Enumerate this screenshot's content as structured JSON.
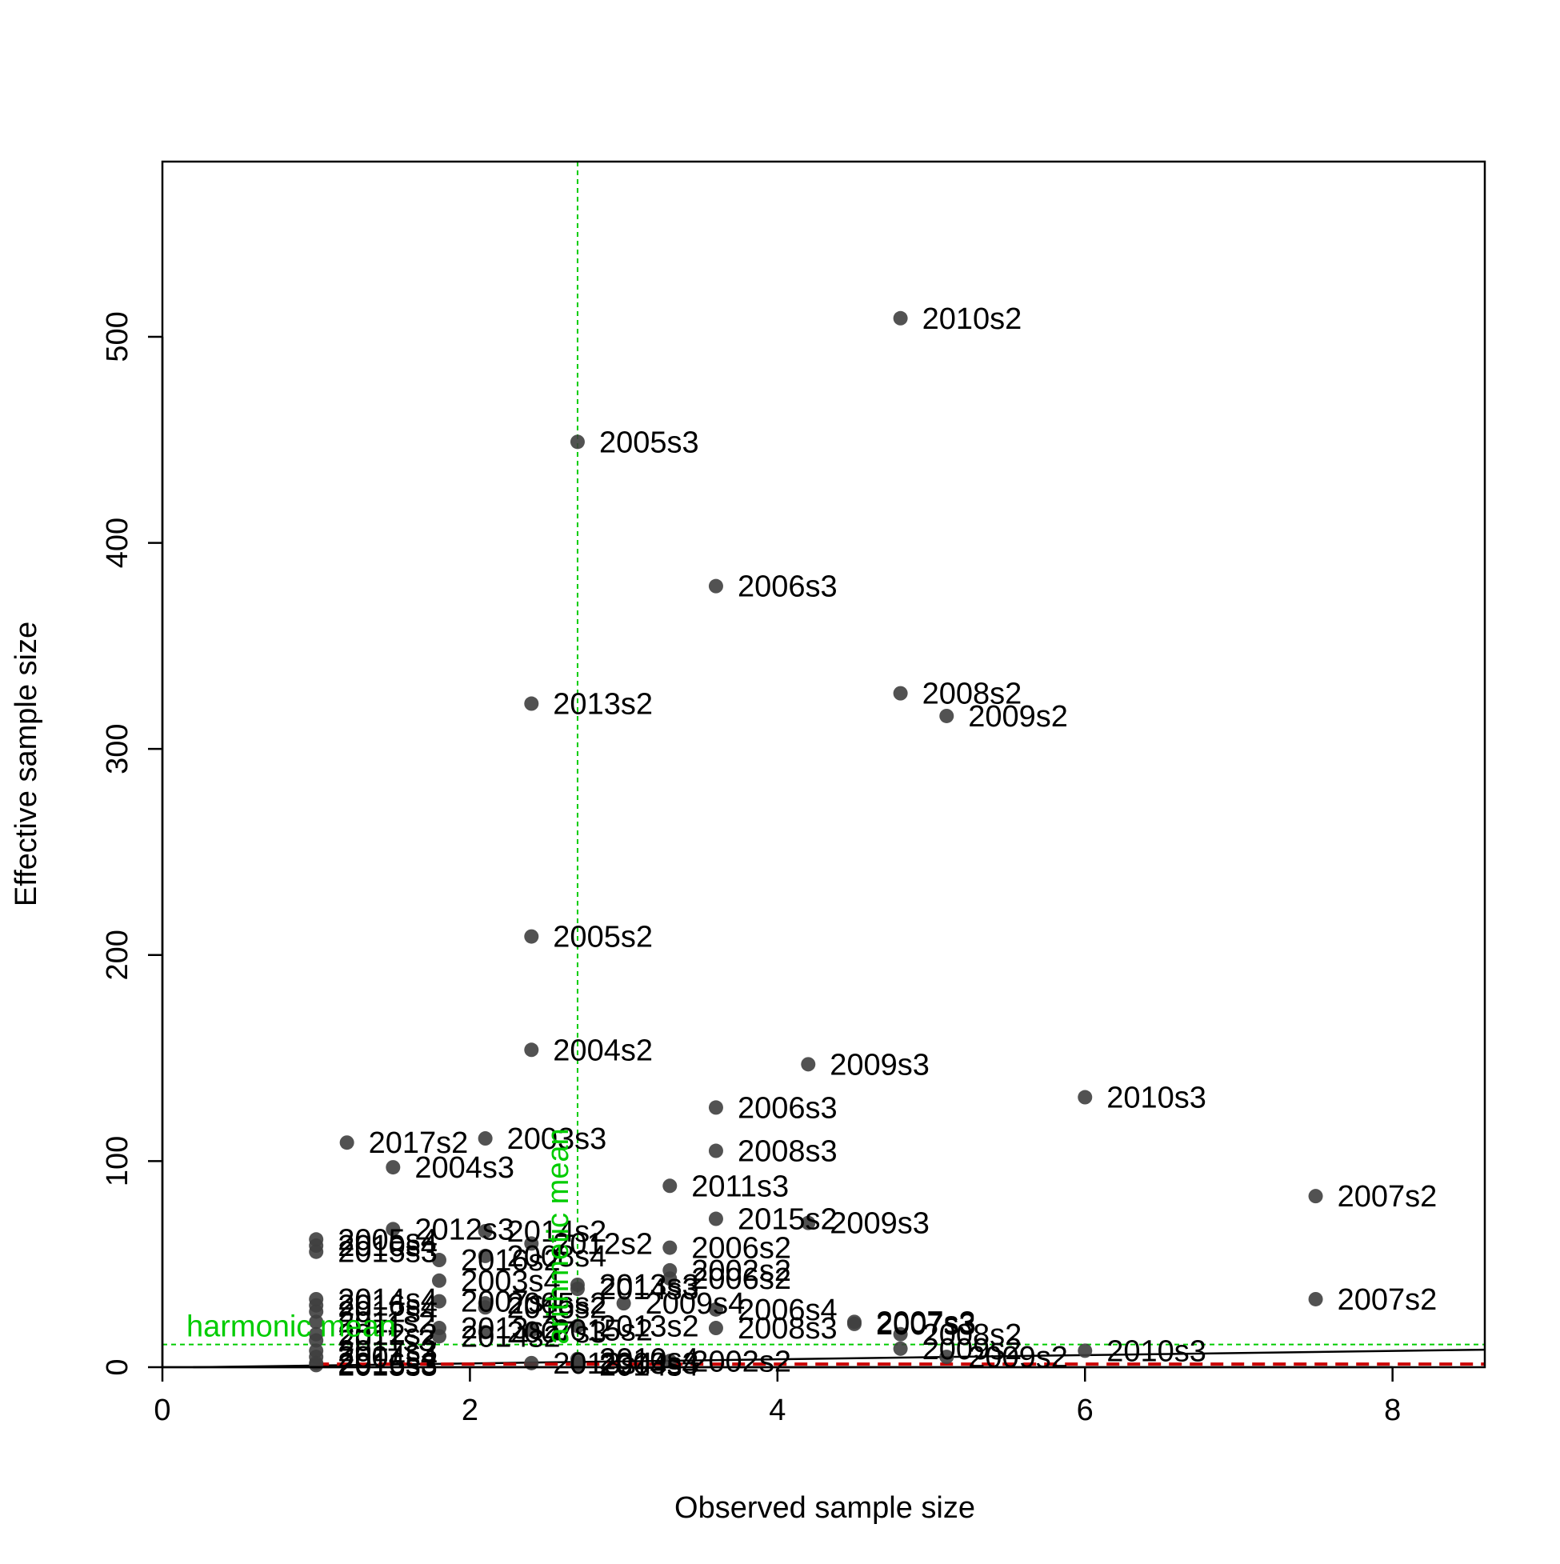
{
  "chart_data": {
    "type": "scatter",
    "title": "",
    "xlabel": "Observed sample size",
    "ylabel": "Effective sample size",
    "xlim": [
      0,
      8.6
    ],
    "ylim": [
      0,
      585
    ],
    "xticks": [
      0,
      2,
      4,
      6,
      8
    ],
    "yticks": [
      0,
      100,
      200,
      300,
      400,
      500
    ],
    "x_tick_labels": [
      "0",
      "2",
      "4",
      "6",
      "8"
    ],
    "y_tick_labels": [
      "0",
      "100",
      "200",
      "300",
      "400",
      "500"
    ],
    "grid": false,
    "legend": "none",
    "colors": {
      "points": "#3f3f3f",
      "reference": "#00cc00",
      "fit_line": "#000000",
      "dashed_line": "#cc0000"
    },
    "points": [
      {
        "x": 4.8,
        "y": 509,
        "label": "2010s2"
      },
      {
        "x": 2.7,
        "y": 449,
        "label": "2005s3"
      },
      {
        "x": 3.6,
        "y": 379,
        "label": "2006s3"
      },
      {
        "x": 2.4,
        "y": 322,
        "label": "2013s2"
      },
      {
        "x": 4.8,
        "y": 327,
        "label": "2008s2"
      },
      {
        "x": 5.1,
        "y": 316,
        "label": "2009s2"
      },
      {
        "x": 2.4,
        "y": 209,
        "label": "2005s2"
      },
      {
        "x": 2.4,
        "y": 154,
        "label": "2004s2"
      },
      {
        "x": 4.2,
        "y": 147,
        "label": "2009s3"
      },
      {
        "x": 6.0,
        "y": 131,
        "label": "2010s3"
      },
      {
        "x": 3.6,
        "y": 126,
        "label": "2006s3"
      },
      {
        "x": 1.2,
        "y": 109,
        "label": "2017s2"
      },
      {
        "x": 2.1,
        "y": 111,
        "label": "2003s3"
      },
      {
        "x": 3.6,
        "y": 105,
        "label": "2008s3"
      },
      {
        "x": 1.5,
        "y": 97,
        "label": "2004s3"
      },
      {
        "x": 3.3,
        "y": 88,
        "label": "2011s3"
      },
      {
        "x": 7.5,
        "y": 83,
        "label": "2007s2"
      },
      {
        "x": 3.6,
        "y": 72,
        "label": "2015s2"
      },
      {
        "x": 4.2,
        "y": 70,
        "label": "2009s3"
      },
      {
        "x": 1.5,
        "y": 67,
        "label": "2012s3"
      },
      {
        "x": 2.1,
        "y": 66,
        "label": "2014s2"
      },
      {
        "x": 1.0,
        "y": 62,
        "label": "2005s4"
      },
      {
        "x": 1.0,
        "y": 59,
        "label": "2010s4"
      },
      {
        "x": 1.0,
        "y": 56,
        "label": "2015s3"
      },
      {
        "x": 2.4,
        "y": 60,
        "label": "2012s2"
      },
      {
        "x": 3.3,
        "y": 58,
        "label": "2006s2"
      },
      {
        "x": 2.1,
        "y": 54,
        "label": "2008s4"
      },
      {
        "x": 1.8,
        "y": 52,
        "label": "2016s2"
      },
      {
        "x": 3.3,
        "y": 47,
        "label": "2002s2"
      },
      {
        "x": 3.3,
        "y": 43,
        "label": "2006s2"
      },
      {
        "x": 1.8,
        "y": 42,
        "label": "2003s4"
      },
      {
        "x": 2.7,
        "y": 40,
        "label": "2013s3"
      },
      {
        "x": 2.7,
        "y": 38,
        "label": "2014s3"
      },
      {
        "x": 7.5,
        "y": 33,
        "label": "2007s2"
      },
      {
        "x": 1.0,
        "y": 33,
        "label": "2014s4"
      },
      {
        "x": 1.0,
        "y": 30,
        "label": "2016s4"
      },
      {
        "x": 1.0,
        "y": 27,
        "label": "2012s4"
      },
      {
        "x": 1.8,
        "y": 32,
        "label": "2007s4"
      },
      {
        "x": 2.1,
        "y": 31,
        "label": "2005s2"
      },
      {
        "x": 2.1,
        "y": 29,
        "label": "2016s2"
      },
      {
        "x": 3.0,
        "y": 31,
        "label": "2009s4"
      },
      {
        "x": 3.6,
        "y": 28,
        "label": "2006s4"
      },
      {
        "x": 4.5,
        "y": 22,
        "label": "2007s3"
      },
      {
        "x": 4.5,
        "y": 21,
        "label": "2007s3"
      },
      {
        "x": 1.0,
        "y": 22,
        "label": "2011s2"
      },
      {
        "x": 1.8,
        "y": 19,
        "label": "2013s2"
      },
      {
        "x": 2.1,
        "y": 17,
        "label": "2007s3"
      },
      {
        "x": 2.4,
        "y": 18,
        "label": "2015s2"
      },
      {
        "x": 2.7,
        "y": 20,
        "label": "2013s2"
      },
      {
        "x": 3.6,
        "y": 19,
        "label": "2008s3"
      },
      {
        "x": 4.8,
        "y": 16,
        "label": "2008s2"
      },
      {
        "x": 1.0,
        "y": 16,
        "label": "2012s2"
      },
      {
        "x": 1.0,
        "y": 13,
        "label": "2011s3"
      },
      {
        "x": 1.8,
        "y": 15,
        "label": "2014s2"
      },
      {
        "x": 4.8,
        "y": 9,
        "label": "2009s2"
      },
      {
        "x": 6.0,
        "y": 8,
        "label": "2010s3"
      },
      {
        "x": 1.0,
        "y": 8,
        "label": "2017s3"
      },
      {
        "x": 1.0,
        "y": 5,
        "label": "2004s4"
      },
      {
        "x": 5.1,
        "y": 5,
        "label": "2009s2"
      },
      {
        "x": 2.7,
        "y": 4,
        "label": "2010s4"
      },
      {
        "x": 2.4,
        "y": 2,
        "label": "2013s4"
      },
      {
        "x": 1.0,
        "y": 2,
        "label": "2016s3"
      },
      {
        "x": 1.0,
        "y": 1,
        "label": "2015s3"
      },
      {
        "x": 2.7,
        "y": 1,
        "label": "2014s4"
      },
      {
        "x": 2.7,
        "y": 2,
        "label": "2003s3"
      },
      {
        "x": 3.3,
        "y": 3,
        "label": "2002s2"
      }
    ],
    "reference_lines": {
      "harmonic_mean": {
        "axis": "y",
        "value": 11,
        "label": "harmonic mean"
      },
      "arithmetic_mean": {
        "axis": "x",
        "value": 2.7,
        "label": "arithmetic mean"
      }
    },
    "fit_line": {
      "x": [
        0.2,
        8.6
      ],
      "y": [
        0,
        8.5
      ]
    },
    "dashed_line": {
      "x": [
        1.0,
        8.6
      ],
      "y": [
        1.5,
        1.5
      ]
    }
  }
}
